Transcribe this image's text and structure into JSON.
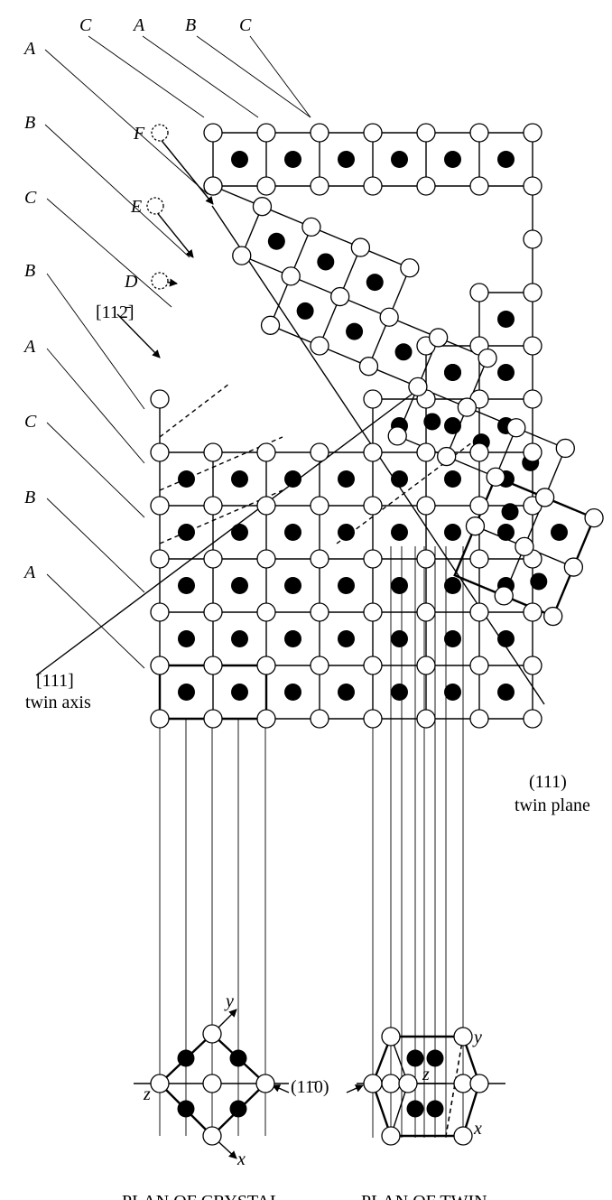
{
  "stacking_labels_top": [
    "C",
    "A",
    "B",
    "C"
  ],
  "stacking_labels_left": [
    "A",
    "B",
    "C",
    "B",
    "A",
    "C",
    "B",
    "A"
  ],
  "displacement_labels": [
    "F",
    "E",
    "D"
  ],
  "direction_label": "[112̄]",
  "twin_axis": {
    "index": "[111]",
    "name": "twin axis"
  },
  "twin_plane": {
    "index": "(111)",
    "name": "twin plane"
  },
  "plan_plane_label": "(11̄0)",
  "axis_labels": {
    "crystal_y": "y",
    "crystal_x": "x",
    "crystal_z": "z",
    "twin_y": "y",
    "twin_x": "x",
    "twin_z": "z"
  },
  "captions": {
    "crystal": "PLAN OF CRYSTAL",
    "twin": "PLAN OF TWIN"
  }
}
